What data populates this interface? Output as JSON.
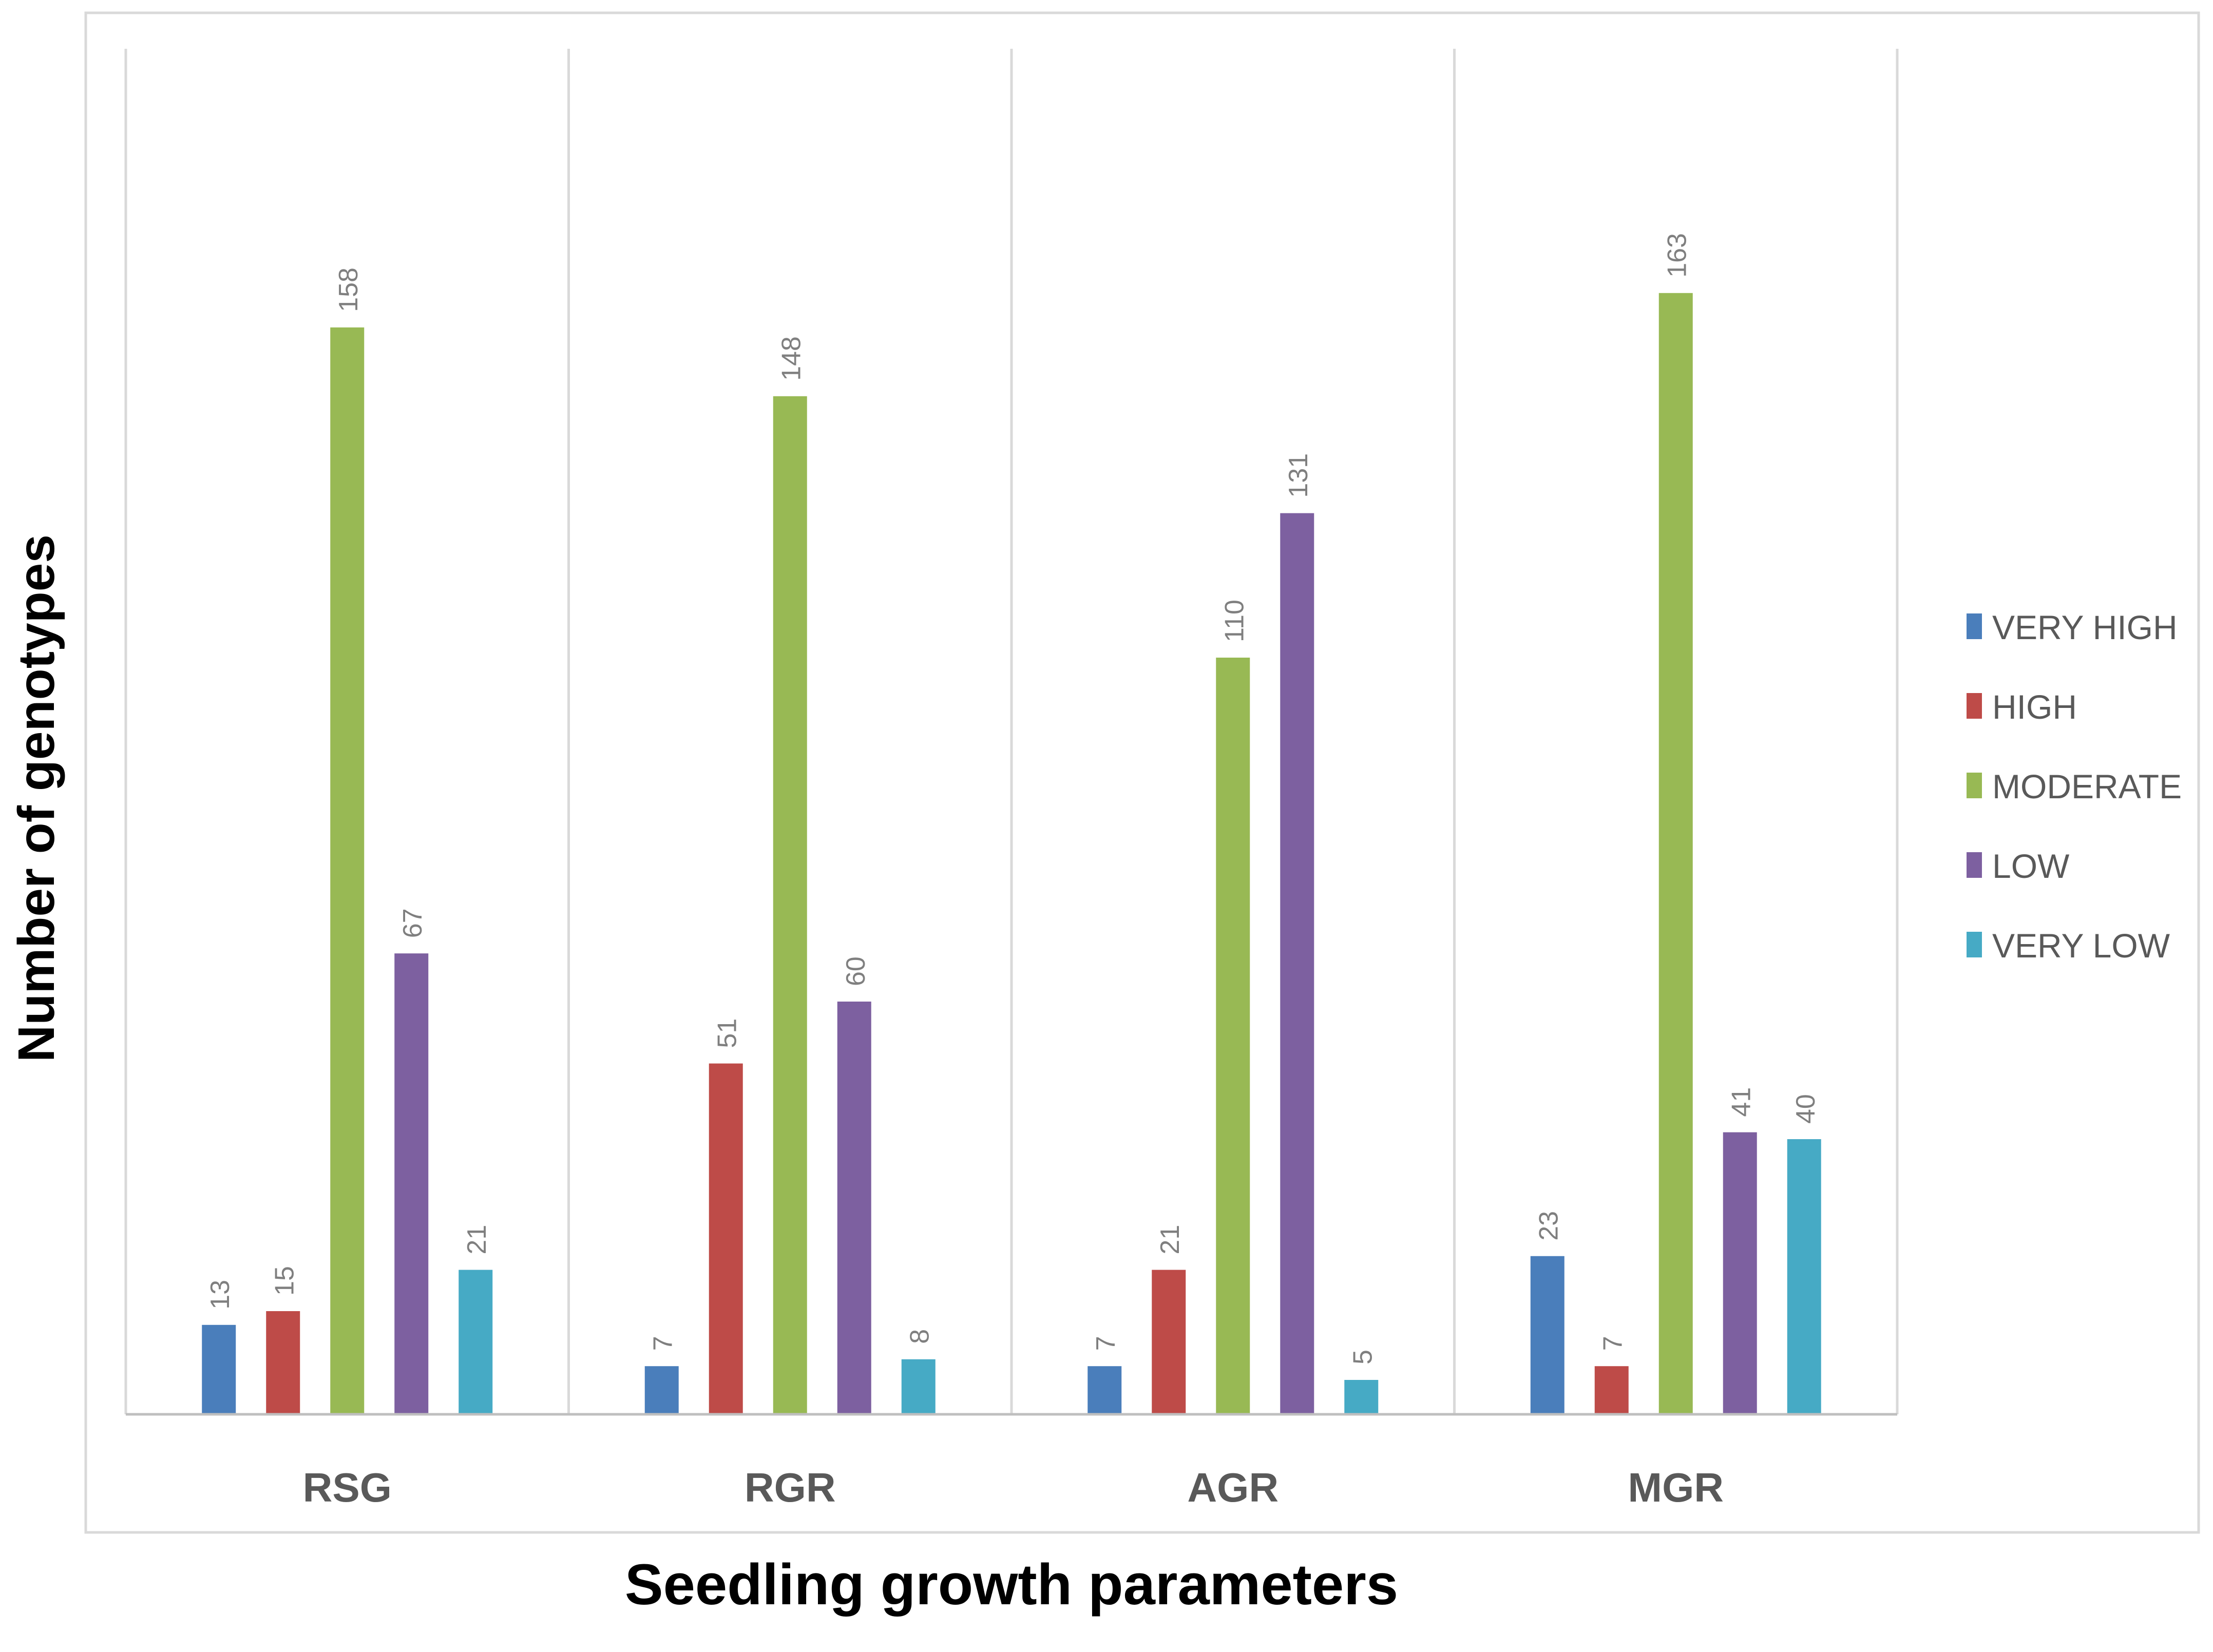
{
  "chart_data": {
    "type": "bar",
    "title": "",
    "xlabel": "Seedling growth parameters",
    "ylabel": "Number of genotypes",
    "categories": [
      "RSG",
      "RGR",
      "AGR",
      "MGR"
    ],
    "series": [
      {
        "name": "VERY HIGH",
        "color": "#4a7ebb",
        "values": [
          13,
          7,
          7,
          23
        ]
      },
      {
        "name": "HIGH",
        "color": "#be4b48",
        "values": [
          15,
          51,
          21,
          7
        ]
      },
      {
        "name": "MODERATE",
        "color": "#98b954",
        "values": [
          158,
          148,
          110,
          163
        ]
      },
      {
        "name": "LOW",
        "color": "#7d60a0",
        "values": [
          67,
          60,
          131,
          41
        ]
      },
      {
        "name": "VERY LOW",
        "color": "#46aac5",
        "values": [
          21,
          8,
          5,
          40
        ]
      }
    ],
    "ylim": [
      0,
      175
    ],
    "grid": false,
    "legend": "right",
    "category_separators": true
  }
}
